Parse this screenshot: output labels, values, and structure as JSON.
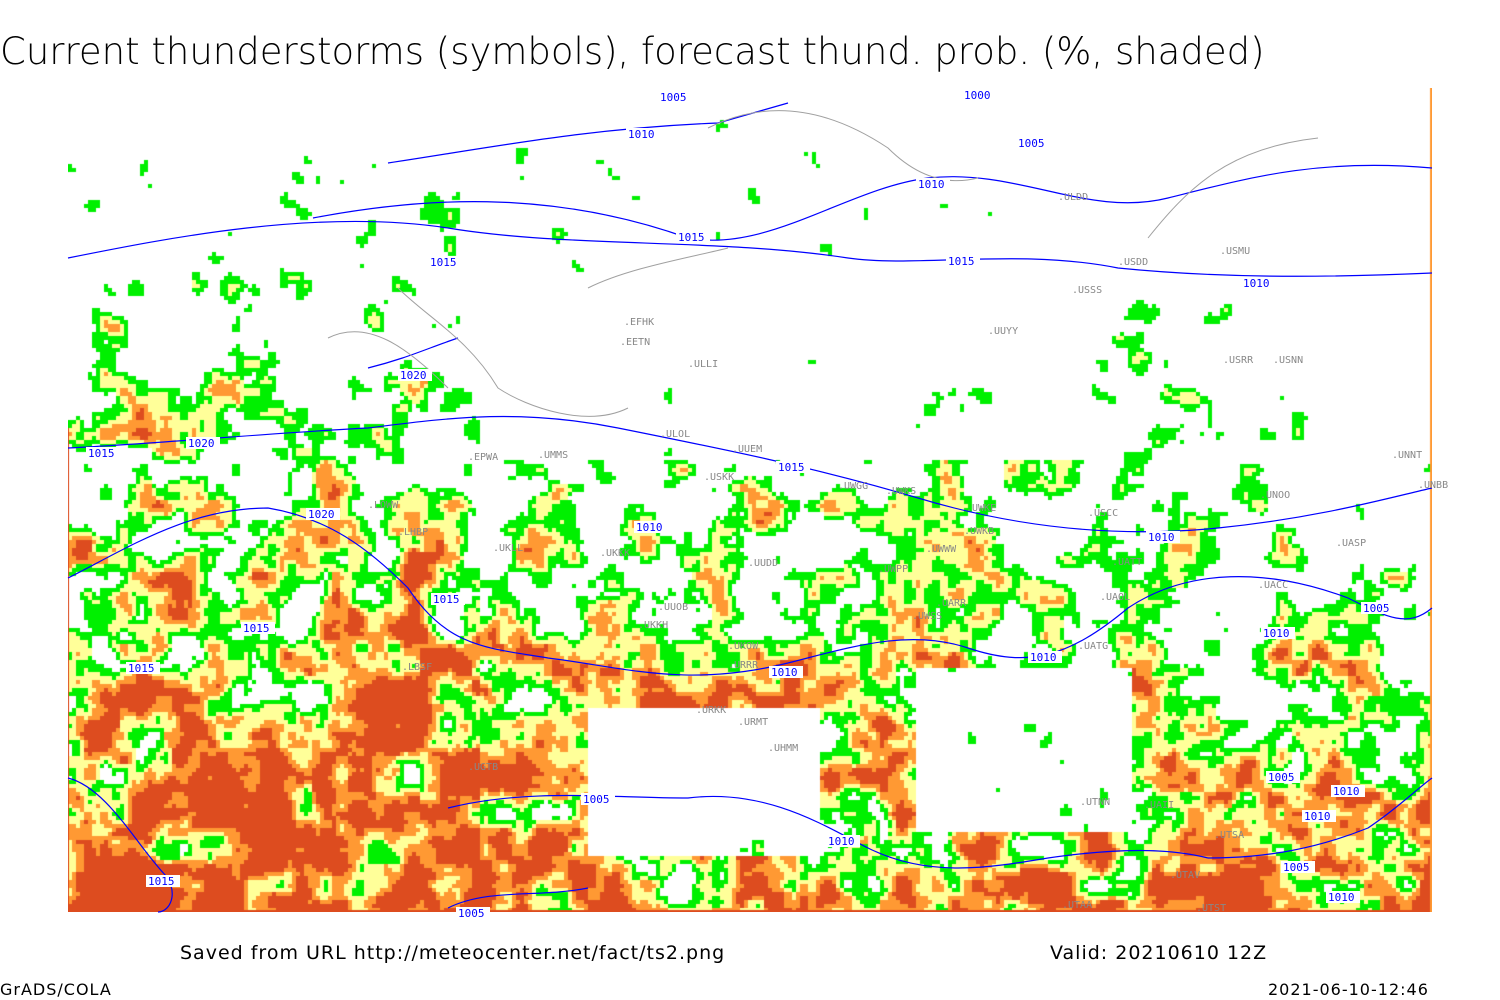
{
  "title": "Current thunderstorms (symbols), forecast thund. prob. (%, shaded)",
  "footer": {
    "saved_from": "Saved from URL http://meteocenter.net/fact/ts2.png",
    "valid": "Valid: 20210610 12Z",
    "software": "GrADS/COLA",
    "timestamp": "2021-06-10-12:46"
  },
  "colors": {
    "prob_low": "#00f000",
    "prob_mid": "#ffff99",
    "prob_high": "#ff9933",
    "prob_max": "#dd4c1f",
    "isobar": "#0000ff",
    "coastline": "#a0a0a0"
  },
  "isobar_labels": [
    "1005",
    "1010",
    "1000",
    "1005",
    "1010",
    "1015",
    "1015",
    "1010",
    "1015",
    "1020",
    "1015",
    "1020",
    "1020",
    "1010",
    "1015",
    "1015",
    "1015",
    "1015",
    "1010",
    "1010",
    "1005",
    "1010",
    "1010",
    "1005",
    "1010",
    "1005",
    "1010",
    "1010",
    "1005",
    "1015",
    "1010",
    "1005"
  ],
  "stations": [
    "EFHK",
    "EETN",
    "ULLI",
    "ULOL",
    "UUEM",
    "UMMS",
    "UKKK",
    "UKLL",
    "UUDD",
    "UUOB",
    "UKKH",
    "UKOW",
    "URRR",
    "URKK",
    "URMT",
    "UGTB",
    "UWGG",
    "UWKS",
    "UWKE",
    "UWKB",
    "UWWW",
    "UWPP",
    "UWSS",
    "UARR",
    "UATG",
    "UACC",
    "UASP",
    "UATT",
    "UAOL",
    "USCC",
    "UNOO",
    "UNNT",
    "UNBB",
    "USRR",
    "USNN",
    "USSS",
    "USDD",
    "USMU",
    "ULDD",
    "UUYY",
    "USKK",
    "UTSA",
    "UTAV",
    "UTAA",
    "UTNN",
    "UAII",
    "UHMM",
    "UTST",
    "EPWA",
    "LOWW",
    "LHBP",
    "LBSF"
  ]
}
